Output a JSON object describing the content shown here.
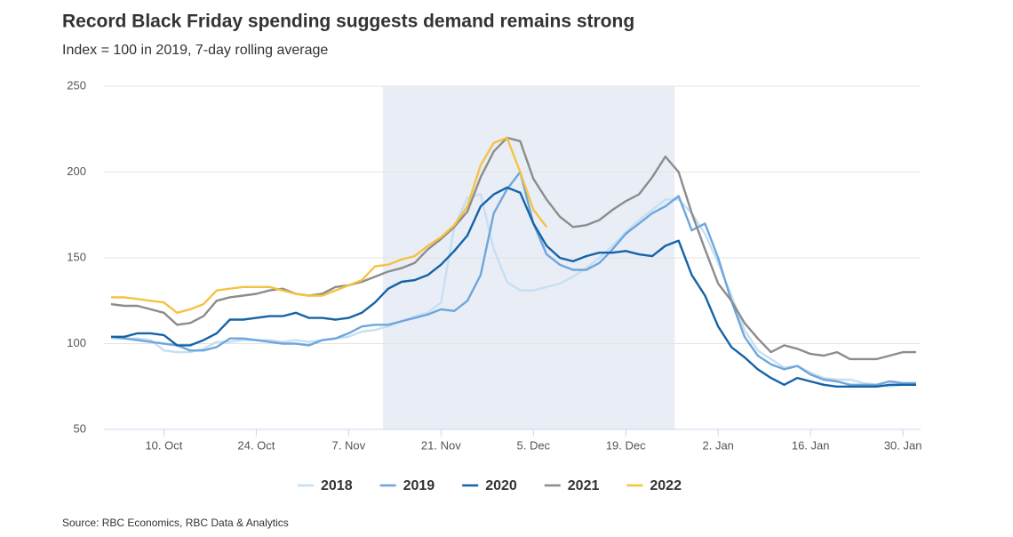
{
  "chart_data": {
    "type": "line",
    "title": "Record Black Friday spending suggests demand remains strong",
    "subtitle": "Index = 100 in 2019, 7-day rolling average",
    "source": "Source: RBC Economics, RBC Data & Analytics",
    "categories": [
      null,
      null,
      null,
      null,
      "10. Oct",
      null,
      null,
      null,
      null,
      null,
      null,
      "24. Oct",
      null,
      null,
      null,
      null,
      null,
      null,
      "7. Nov",
      null,
      null,
      null,
      null,
      null,
      null,
      "21. Nov",
      null,
      null,
      null,
      null,
      null,
      null,
      "5. Dec",
      null,
      null,
      null,
      null,
      null,
      null,
      "19. Dec",
      null,
      null,
      null,
      null,
      null,
      null,
      "2. Jan",
      null,
      null,
      null,
      null,
      null,
      null,
      "16. Jan",
      null,
      null,
      null,
      null,
      null,
      null,
      "30. Jan",
      null
    ],
    "ylim": [
      50,
      250
    ],
    "yticks": [
      50,
      100,
      150,
      200,
      250
    ],
    "grid": true,
    "series": [
      {
        "name": "2018",
        "color": "#c6dff2",
        "values": [
          103,
          103,
          103,
          102,
          96,
          95,
          95,
          97,
          101,
          101,
          102,
          102,
          102,
          101,
          102,
          101,
          102,
          103,
          104,
          107,
          108,
          110,
          113,
          116,
          118,
          124,
          168,
          185,
          187,
          155,
          136,
          131,
          131,
          133,
          135,
          139,
          144,
          150,
          157,
          165,
          172,
          178,
          184,
          184,
          176,
          164,
          147,
          128,
          108,
          96,
          91,
          86,
          87,
          83,
          80,
          79,
          79,
          77,
          76,
          75,
          76,
          76
        ]
      },
      {
        "name": "2019",
        "color": "#6ea6dc",
        "values": [
          104,
          103,
          102,
          101,
          100,
          99,
          96,
          96,
          98,
          103,
          103,
          102,
          101,
          100,
          100,
          99,
          102,
          103,
          106,
          110,
          111,
          111,
          113,
          115,
          117,
          120,
          119,
          125,
          140,
          176,
          190,
          200,
          170,
          152,
          146,
          143,
          143,
          147,
          155,
          164,
          170,
          176,
          180,
          186,
          166,
          170,
          150,
          125,
          104,
          93,
          88,
          85,
          87,
          82,
          79,
          78,
          76,
          76,
          76,
          78,
          77,
          77
        ]
      },
      {
        "name": "2020",
        "color": "#1463a8",
        "values": [
          104,
          104,
          106,
          106,
          105,
          99,
          99,
          102,
          106,
          114,
          114,
          115,
          116,
          116,
          118,
          115,
          115,
          114,
          115,
          118,
          124,
          132,
          136,
          137,
          140,
          146,
          154,
          163,
          180,
          187,
          191,
          188,
          170,
          157,
          150,
          148,
          151,
          153,
          153,
          154,
          152,
          151,
          157,
          160,
          140,
          128,
          110,
          98,
          92,
          85,
          80,
          76,
          80,
          78,
          76,
          75,
          75,
          75,
          75,
          76,
          76,
          76
        ]
      },
      {
        "name": "2021",
        "color": "#8c8c8c",
        "values": [
          123,
          122,
          122,
          120,
          118,
          111,
          112,
          116,
          125,
          127,
          128,
          129,
          131,
          132,
          129,
          128,
          129,
          133,
          134,
          136,
          139,
          142,
          144,
          147,
          155,
          161,
          168,
          177,
          197,
          212,
          220,
          218,
          196,
          184,
          174,
          168,
          169,
          172,
          178,
          183,
          187,
          197,
          209,
          200,
          176,
          155,
          135,
          125,
          112,
          103,
          95,
          99,
          97,
          94,
          93,
          95,
          91,
          91,
          91,
          93,
          95,
          95
        ]
      },
      {
        "name": "2022",
        "color": "#f5c242",
        "values": [
          127,
          127,
          126,
          125,
          124,
          118,
          120,
          123,
          131,
          132,
          133,
          133,
          133,
          131,
          129,
          128,
          128,
          131,
          134,
          137,
          145,
          146,
          149,
          151,
          157,
          162,
          169,
          180,
          204,
          217,
          220,
          200,
          178,
          168,
          null,
          null,
          null,
          null,
          null,
          null,
          null,
          null,
          null,
          null,
          null,
          null,
          null,
          null,
          null,
          null,
          null,
          null,
          null,
          null,
          null,
          null,
          null,
          null,
          null,
          null,
          null,
          null
        ]
      }
    ]
  }
}
